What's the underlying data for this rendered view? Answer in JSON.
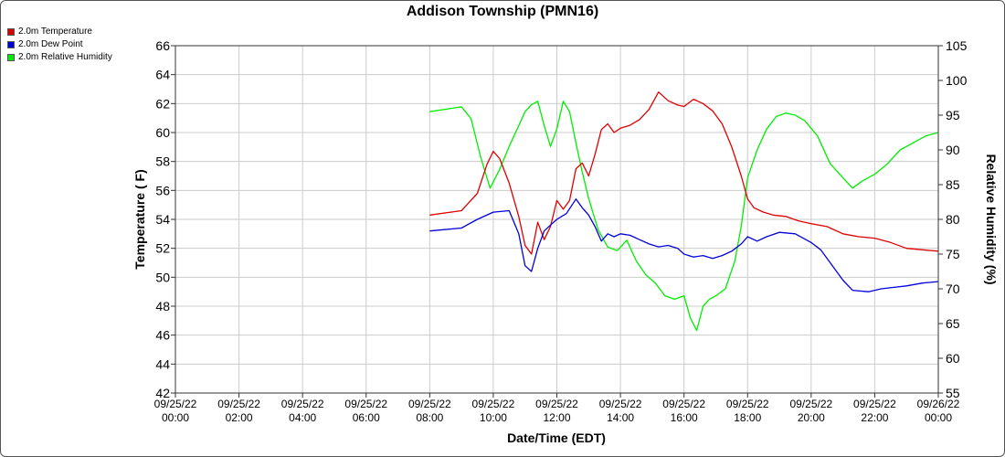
{
  "chart_data": {
    "type": "line",
    "title": "Addison Township (PMN16)",
    "xlabel": "Date/Time (EDT)",
    "ylabel_left": "Temperature ( F)",
    "ylabel_right": "Relative Humidity (%)",
    "ylim_left": [
      42,
      66
    ],
    "ylim_right": [
      55,
      105
    ],
    "yticks_left": [
      "66",
      "64",
      "62",
      "60",
      "58",
      "56",
      "54",
      "52",
      "50",
      "48",
      "46",
      "44",
      "42"
    ],
    "yticks_right": [
      "105",
      "100",
      "95",
      "90",
      "85",
      "80",
      "75",
      "70",
      "65",
      "60",
      "55"
    ],
    "xlim_hours": [
      0,
      24
    ],
    "xticks": [
      {
        "h": 0,
        "l1": "09/25/22",
        "l2": "00:00"
      },
      {
        "h": 2,
        "l1": "09/25/22",
        "l2": "02:00"
      },
      {
        "h": 4,
        "l1": "09/25/22",
        "l2": "04:00"
      },
      {
        "h": 6,
        "l1": "09/25/22",
        "l2": "06:00"
      },
      {
        "h": 8,
        "l1": "09/25/22",
        "l2": "08:00"
      },
      {
        "h": 10,
        "l1": "09/25/22",
        "l2": "10:00"
      },
      {
        "h": 12,
        "l1": "09/25/22",
        "l2": "12:00"
      },
      {
        "h": 14,
        "l1": "09/25/22",
        "l2": "14:00"
      },
      {
        "h": 16,
        "l1": "09/25/22",
        "l2": "16:00"
      },
      {
        "h": 18,
        "l1": "09/25/22",
        "l2": "18:00"
      },
      {
        "h": 20,
        "l1": "09/25/22",
        "l2": "20:00"
      },
      {
        "h": 22,
        "l1": "09/25/22",
        "l2": "22:00"
      },
      {
        "h": 24,
        "l1": "09/26/22",
        "l2": "00:00"
      }
    ],
    "grid": true,
    "legend_position": "top-left",
    "series": [
      {
        "name": "2.0m Temperature",
        "color": "#e00000",
        "axis": "left",
        "x": [
          8.0,
          9.0,
          9.5,
          9.8,
          10.0,
          10.2,
          10.5,
          10.8,
          11.0,
          11.2,
          11.4,
          11.6,
          11.8,
          12.0,
          12.2,
          12.4,
          12.6,
          12.8,
          13.0,
          13.2,
          13.4,
          13.6,
          13.8,
          14.0,
          14.3,
          14.6,
          14.9,
          15.2,
          15.5,
          15.8,
          16.0,
          16.3,
          16.6,
          16.9,
          17.2,
          17.5,
          17.8,
          18.0,
          18.2,
          18.5,
          18.8,
          19.2,
          19.6,
          20.0,
          20.5,
          21.0,
          21.5,
          22.0,
          22.5,
          23.0,
          23.5,
          24.0
        ],
        "y": [
          54.3,
          54.6,
          55.8,
          57.8,
          58.7,
          58.2,
          56.5,
          54.2,
          52.2,
          51.6,
          53.8,
          52.6,
          53.5,
          55.3,
          54.7,
          55.3,
          57.5,
          57.9,
          57.0,
          58.5,
          60.2,
          60.6,
          60.0,
          60.3,
          60.5,
          60.9,
          61.6,
          62.8,
          62.2,
          61.9,
          61.8,
          62.3,
          62.0,
          61.5,
          60.6,
          59.0,
          57.0,
          55.4,
          54.8,
          54.5,
          54.3,
          54.2,
          53.9,
          53.7,
          53.5,
          53.0,
          52.8,
          52.7,
          52.4,
          52.0,
          51.9,
          51.8
        ]
      },
      {
        "name": "2.0m Dew Point",
        "color": "#0000dd",
        "axis": "left",
        "x": [
          8.0,
          9.0,
          9.5,
          10.0,
          10.5,
          10.8,
          11.0,
          11.2,
          11.4,
          11.6,
          11.8,
          12.0,
          12.3,
          12.6,
          12.8,
          13.0,
          13.2,
          13.4,
          13.6,
          13.8,
          14.0,
          14.3,
          14.6,
          14.9,
          15.2,
          15.5,
          15.8,
          16.0,
          16.3,
          16.6,
          16.9,
          17.2,
          17.5,
          17.8,
          18.0,
          18.3,
          18.6,
          19.0,
          19.5,
          20.0,
          20.3,
          20.6,
          21.0,
          21.3,
          21.8,
          22.2,
          22.6,
          23.0,
          23.5,
          24.0
        ],
        "y": [
          53.2,
          53.4,
          54.0,
          54.5,
          54.6,
          53.0,
          50.8,
          50.4,
          52.0,
          53.2,
          53.6,
          54.0,
          54.4,
          55.4,
          54.8,
          54.3,
          53.5,
          52.5,
          53.0,
          52.8,
          53.0,
          52.9,
          52.6,
          52.3,
          52.1,
          52.2,
          52.0,
          51.6,
          51.4,
          51.5,
          51.3,
          51.5,
          51.8,
          52.3,
          52.8,
          52.5,
          52.8,
          53.1,
          53.0,
          52.4,
          51.9,
          51.0,
          49.8,
          49.1,
          49.0,
          49.2,
          49.3,
          49.4,
          49.6,
          49.7
        ]
      },
      {
        "name": "2.0m Relative Humidity",
        "color": "#00ee00",
        "axis": "right",
        "x": [
          8.0,
          9.0,
          9.3,
          9.6,
          9.9,
          10.2,
          10.5,
          10.8,
          11.0,
          11.2,
          11.4,
          11.6,
          11.8,
          12.0,
          12.2,
          12.4,
          12.6,
          12.8,
          13.0,
          13.3,
          13.6,
          13.9,
          14.2,
          14.5,
          14.8,
          15.1,
          15.4,
          15.7,
          16.0,
          16.2,
          16.4,
          16.6,
          16.8,
          17.0,
          17.3,
          17.6,
          17.8,
          18.0,
          18.3,
          18.6,
          18.9,
          19.2,
          19.5,
          19.8,
          20.2,
          20.6,
          21.0,
          21.3,
          21.6,
          22.0,
          22.4,
          22.8,
          23.2,
          23.6,
          24.0
        ],
        "y": [
          95.5,
          96.2,
          94.5,
          89.0,
          84.5,
          87.2,
          90.5,
          93.5,
          95.5,
          96.5,
          97.0,
          93.5,
          90.5,
          93.0,
          97.0,
          95.5,
          91.0,
          86.8,
          83.0,
          78.5,
          76.0,
          75.5,
          77.0,
          74.0,
          72.0,
          70.8,
          69.0,
          68.5,
          69.0,
          65.8,
          64.0,
          67.5,
          68.5,
          69.0,
          70.0,
          74.0,
          79.0,
          86.0,
          90.0,
          93.0,
          94.8,
          95.3,
          95.0,
          94.2,
          92.0,
          88.0,
          86.0,
          84.5,
          85.5,
          86.5,
          88.0,
          90.0,
          91.0,
          92.0,
          92.5
        ]
      }
    ]
  }
}
